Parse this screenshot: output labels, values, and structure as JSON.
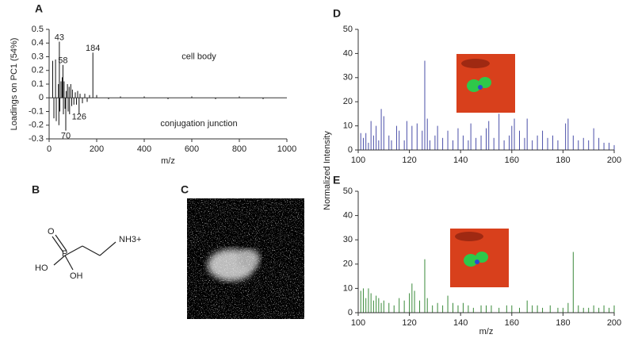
{
  "chart_data": [
    {
      "type": "stem",
      "label": "A",
      "xlabel": "m/z",
      "ylabel": "Loadings on PC1 (54%)",
      "color": "#111111",
      "xlim": [
        0,
        1000
      ],
      "ylim": [
        -0.3,
        0.5
      ],
      "xticks": [
        0,
        200,
        400,
        600,
        800,
        1000
      ],
      "yticks": [
        -0.3,
        -0.2,
        -0.1,
        0,
        0.1,
        0.2,
        0.3,
        0.4,
        0.5
      ],
      "x": [
        15,
        20,
        27,
        30,
        39,
        41,
        43,
        45,
        50,
        55,
        58,
        60,
        63,
        67,
        70,
        72,
        77,
        80,
        84,
        86,
        91,
        95,
        98,
        104,
        110,
        115,
        120,
        126,
        130,
        140,
        150,
        160,
        170,
        184,
        200,
        250,
        300,
        400,
        500,
        600,
        700,
        800,
        900,
        1000
      ],
      "values": [
        0.27,
        -0.15,
        0.28,
        -0.17,
        0.1,
        -0.2,
        0.41,
        -0.1,
        0.12,
        0.15,
        0.24,
        -0.12,
        0.12,
        -0.08,
        -0.24,
        0.05,
        0.1,
        -0.1,
        0.08,
        -0.12,
        0.1,
        -0.06,
        0.06,
        -0.05,
        0.04,
        -0.05,
        0.05,
        -0.12,
        0.03,
        -0.04,
        0.03,
        -0.03,
        0.02,
        0.33,
        0.02,
        -0.01,
        0.01,
        0.01,
        -0.01,
        0.01,
        -0.01,
        0.01,
        -0.01,
        0
      ],
      "annotations": [
        {
          "text": "43",
          "x": 43,
          "y": 0.44
        },
        {
          "text": "58",
          "x": 58,
          "y": 0.27
        },
        {
          "text": "184",
          "x": 184,
          "y": 0.36
        },
        {
          "text": "126",
          "x": 126,
          "y": -0.14
        },
        {
          "text": "70",
          "x": 70,
          "y": -0.28
        },
        {
          "text": "cell body",
          "x": 630,
          "y": 0.3
        },
        {
          "text": "conjugation junction",
          "x": 630,
          "y": -0.19
        }
      ]
    },
    {
      "type": "stem",
      "label": "D",
      "ylabel": "Normalized Intensity",
      "color": "#4a4fa8",
      "xlim": [
        100,
        200
      ],
      "ylim": [
        0,
        50
      ],
      "xticks": [
        100,
        120,
        140,
        160,
        180,
        200
      ],
      "yticks": [
        0,
        10,
        20,
        30,
        40,
        50
      ],
      "x": [
        101,
        102,
        103,
        104,
        105,
        106,
        107,
        108,
        109,
        110,
        112,
        113,
        115,
        116,
        118,
        119,
        121,
        123,
        125,
        126,
        127,
        128,
        130,
        131,
        133,
        135,
        137,
        139,
        141,
        143,
        144,
        146,
        148,
        150,
        151,
        153,
        155,
        157,
        159,
        160,
        161,
        163,
        165,
        166,
        168,
        170,
        172,
        174,
        176,
        178,
        181,
        182,
        184,
        186,
        188,
        190,
        192,
        194,
        196,
        198,
        200
      ],
      "values": [
        7,
        5,
        7,
        3,
        12,
        6,
        10,
        4,
        17,
        14,
        6,
        4,
        10,
        8,
        4,
        12,
        10,
        11,
        8,
        37,
        13,
        4,
        6,
        10,
        5,
        8,
        4,
        9,
        6,
        4,
        11,
        5,
        6,
        9,
        12,
        5,
        15,
        4,
        6,
        10,
        13,
        8,
        5,
        13,
        4,
        6,
        8,
        5,
        6,
        4,
        11,
        13,
        6,
        4,
        5,
        4,
        9,
        5,
        3,
        3,
        2
      ]
    },
    {
      "type": "stem",
      "label": "E",
      "xlabel": "m/z",
      "color": "#3a8a3a",
      "xlim": [
        100,
        200
      ],
      "ylim": [
        0,
        50
      ],
      "xticks": [
        100,
        120,
        140,
        160,
        180,
        200
      ],
      "yticks": [
        0,
        10,
        20,
        30,
        40,
        50
      ],
      "x": [
        101,
        102,
        103,
        104,
        105,
        106,
        107,
        108,
        109,
        110,
        112,
        114,
        116,
        118,
        120,
        121,
        122,
        124,
        126,
        127,
        129,
        131,
        133,
        135,
        137,
        139,
        141,
        143,
        145,
        148,
        150,
        152,
        155,
        158,
        160,
        163,
        166,
        168,
        170,
        172,
        175,
        178,
        180,
        182,
        184,
        186,
        188,
        190,
        192,
        194,
        196,
        198,
        200
      ],
      "values": [
        9,
        10,
        6,
        10,
        8,
        5,
        7,
        6,
        4,
        5,
        4,
        3,
        6,
        5,
        8,
        12,
        9,
        5,
        22,
        6,
        3,
        4,
        3,
        7,
        4,
        3,
        4,
        3,
        2,
        3,
        3,
        3,
        2,
        3,
        3,
        2,
        5,
        3,
        3,
        2,
        3,
        2,
        2,
        4,
        25,
        3,
        2,
        2,
        3,
        2,
        3,
        2,
        3
      ]
    }
  ],
  "structure": {
    "label": "B",
    "atoms": [
      "O",
      "P",
      "HO",
      "OH",
      "NH3+"
    ]
  },
  "image": {
    "label": "C"
  }
}
